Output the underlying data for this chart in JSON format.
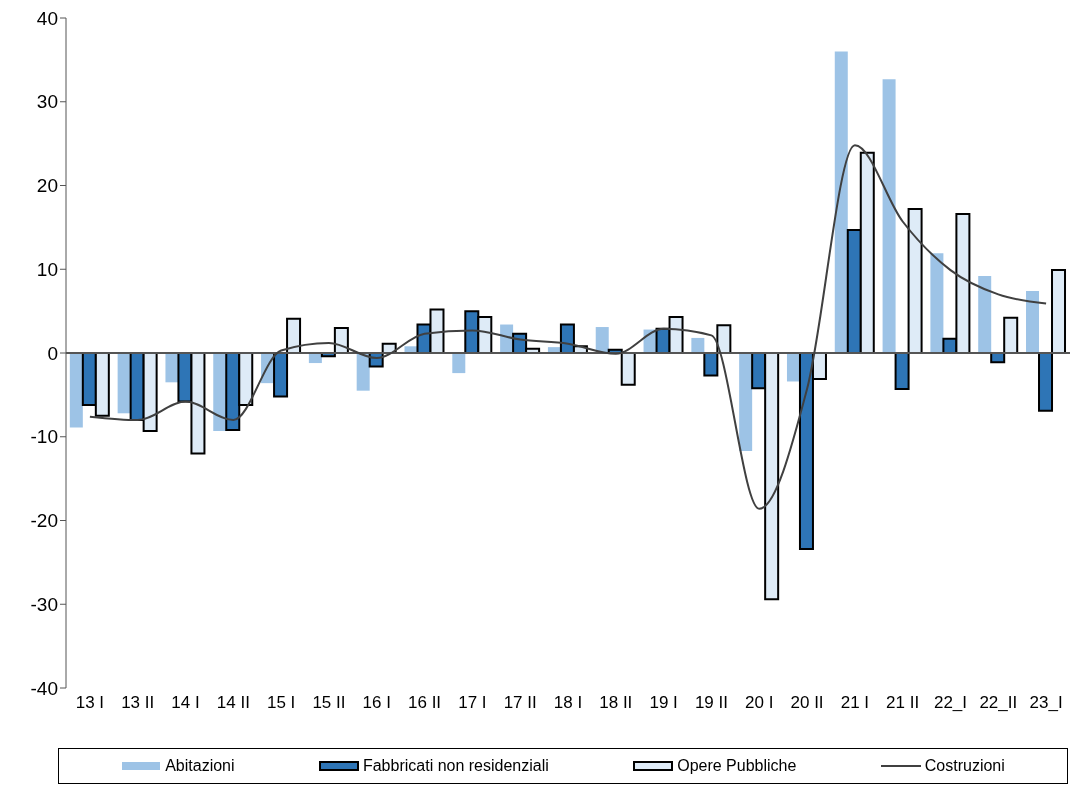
{
  "chart_data": {
    "type": "bar",
    "categories": [
      "13 I",
      "13 II",
      "14 I",
      "14 II",
      "15 I",
      "15 II",
      "16 I",
      "16 II",
      "17 I",
      "17 II",
      "18 I",
      "18 II",
      "19 I",
      "19 II",
      "20 I",
      "20 II",
      "21 I",
      "21 II",
      "22_I",
      "22_II",
      "23_I"
    ],
    "series": [
      {
        "name": "Abitazioni",
        "color": "#9dc3e6",
        "values": [
          -8.9,
          -7.2,
          -3.5,
          -9.3,
          -3.6,
          -1.2,
          -4.5,
          0.8,
          -2.4,
          3.4,
          0.7,
          3.1,
          2.8,
          1.8,
          -11.7,
          -3.4,
          36,
          32.7,
          11.9,
          9.2,
          7.4
        ]
      },
      {
        "name": "Fabbricati non residenziali",
        "color": "#2e75b6",
        "values": [
          -6.2,
          -8,
          -5.8,
          -9.2,
          -5.2,
          -0.4,
          -1.6,
          3.4,
          5,
          2.3,
          3.4,
          0.4,
          2.9,
          -2.7,
          -4.2,
          -23.4,
          14.7,
          -4.3,
          1.7,
          -1.1,
          -6.9
        ]
      },
      {
        "name": "Opere Pubbliche",
        "color": "#deebf7",
        "values": [
          -7.5,
          -9.3,
          -12,
          -6.2,
          4.1,
          3,
          1.1,
          5.2,
          4.3,
          0.5,
          0.8,
          -3.8,
          4.3,
          3.3,
          -29.4,
          -3.1,
          23.9,
          17.2,
          16.6,
          4.2,
          9.9
        ]
      },
      {
        "name": "Costruzioni",
        "type": "line",
        "color": "#404040",
        "values": [
          -7.6,
          -8,
          -5.8,
          -8,
          0.3,
          1.2,
          -0.6,
          2.3,
          2.7,
          1.6,
          1.1,
          -0.1,
          2.9,
          2.1,
          -18.6,
          -4.3,
          24.8,
          15.7,
          9.9,
          7,
          5.9
        ]
      }
    ],
    "ylim": [
      -40,
      40
    ],
    "yticks": [
      -40,
      -30,
      -20,
      -10,
      0,
      10,
      20,
      30,
      40
    ],
    "legend": "bottom"
  }
}
